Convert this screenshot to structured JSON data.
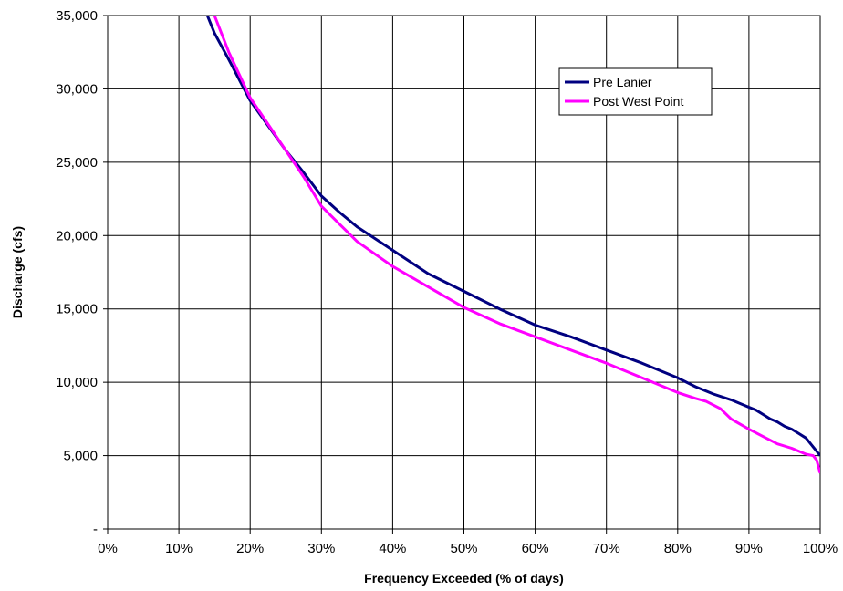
{
  "chart_data": {
    "type": "line",
    "title": "",
    "xlabel": "Frequency Exceeded (% of days)",
    "ylabel": "Discharge (cfs)",
    "xlim": [
      0,
      100
    ],
    "ylim": [
      0,
      35000
    ],
    "x_ticks": [
      "0%",
      "10%",
      "20%",
      "30%",
      "40%",
      "50%",
      "60%",
      "70%",
      "80%",
      "90%",
      "100%"
    ],
    "y_ticks": [
      "-",
      "5,000",
      "10,000",
      "15,000",
      "20,000",
      "25,000",
      "30,000",
      "35,000"
    ],
    "grid": true,
    "legend_position": "top-right",
    "series": [
      {
        "name": "Pre Lanier",
        "color": "#000080",
        "x": [
          14,
          15,
          17,
          20,
          22.5,
          25,
          27.5,
          30,
          32.5,
          35,
          40,
          45,
          50,
          55,
          60,
          65,
          70,
          75,
          80,
          82.5,
          85,
          87.5,
          90,
          91,
          92,
          93,
          94,
          95,
          96,
          97,
          98,
          99,
          100
        ],
        "y": [
          35000,
          33800,
          32000,
          29200,
          27500,
          25800,
          24300,
          22700,
          21600,
          20600,
          19000,
          17400,
          16200,
          15000,
          13900,
          13100,
          12200,
          11300,
          10300,
          9700,
          9200,
          8800,
          8300,
          8100,
          7800,
          7500,
          7300,
          7000,
          6800,
          6500,
          6200,
          5600,
          5000
        ]
      },
      {
        "name": "Post West Point",
        "color": "#ff00ff",
        "x": [
          15,
          17,
          20,
          22.5,
          25,
          27.5,
          30,
          32.5,
          35,
          40,
          45,
          50,
          55,
          60,
          65,
          70,
          75,
          80,
          82.5,
          84,
          86,
          87.5,
          90,
          92,
          94,
          96,
          98,
          99,
          99.5,
          100
        ],
        "y": [
          35000,
          32500,
          29400,
          27600,
          25800,
          24000,
          22000,
          20800,
          19600,
          17900,
          16500,
          15100,
          14000,
          13100,
          12200,
          11300,
          10300,
          9300,
          8900,
          8700,
          8200,
          7500,
          6800,
          6300,
          5800,
          5500,
          5100,
          5000,
          4700,
          3800
        ]
      }
    ]
  }
}
